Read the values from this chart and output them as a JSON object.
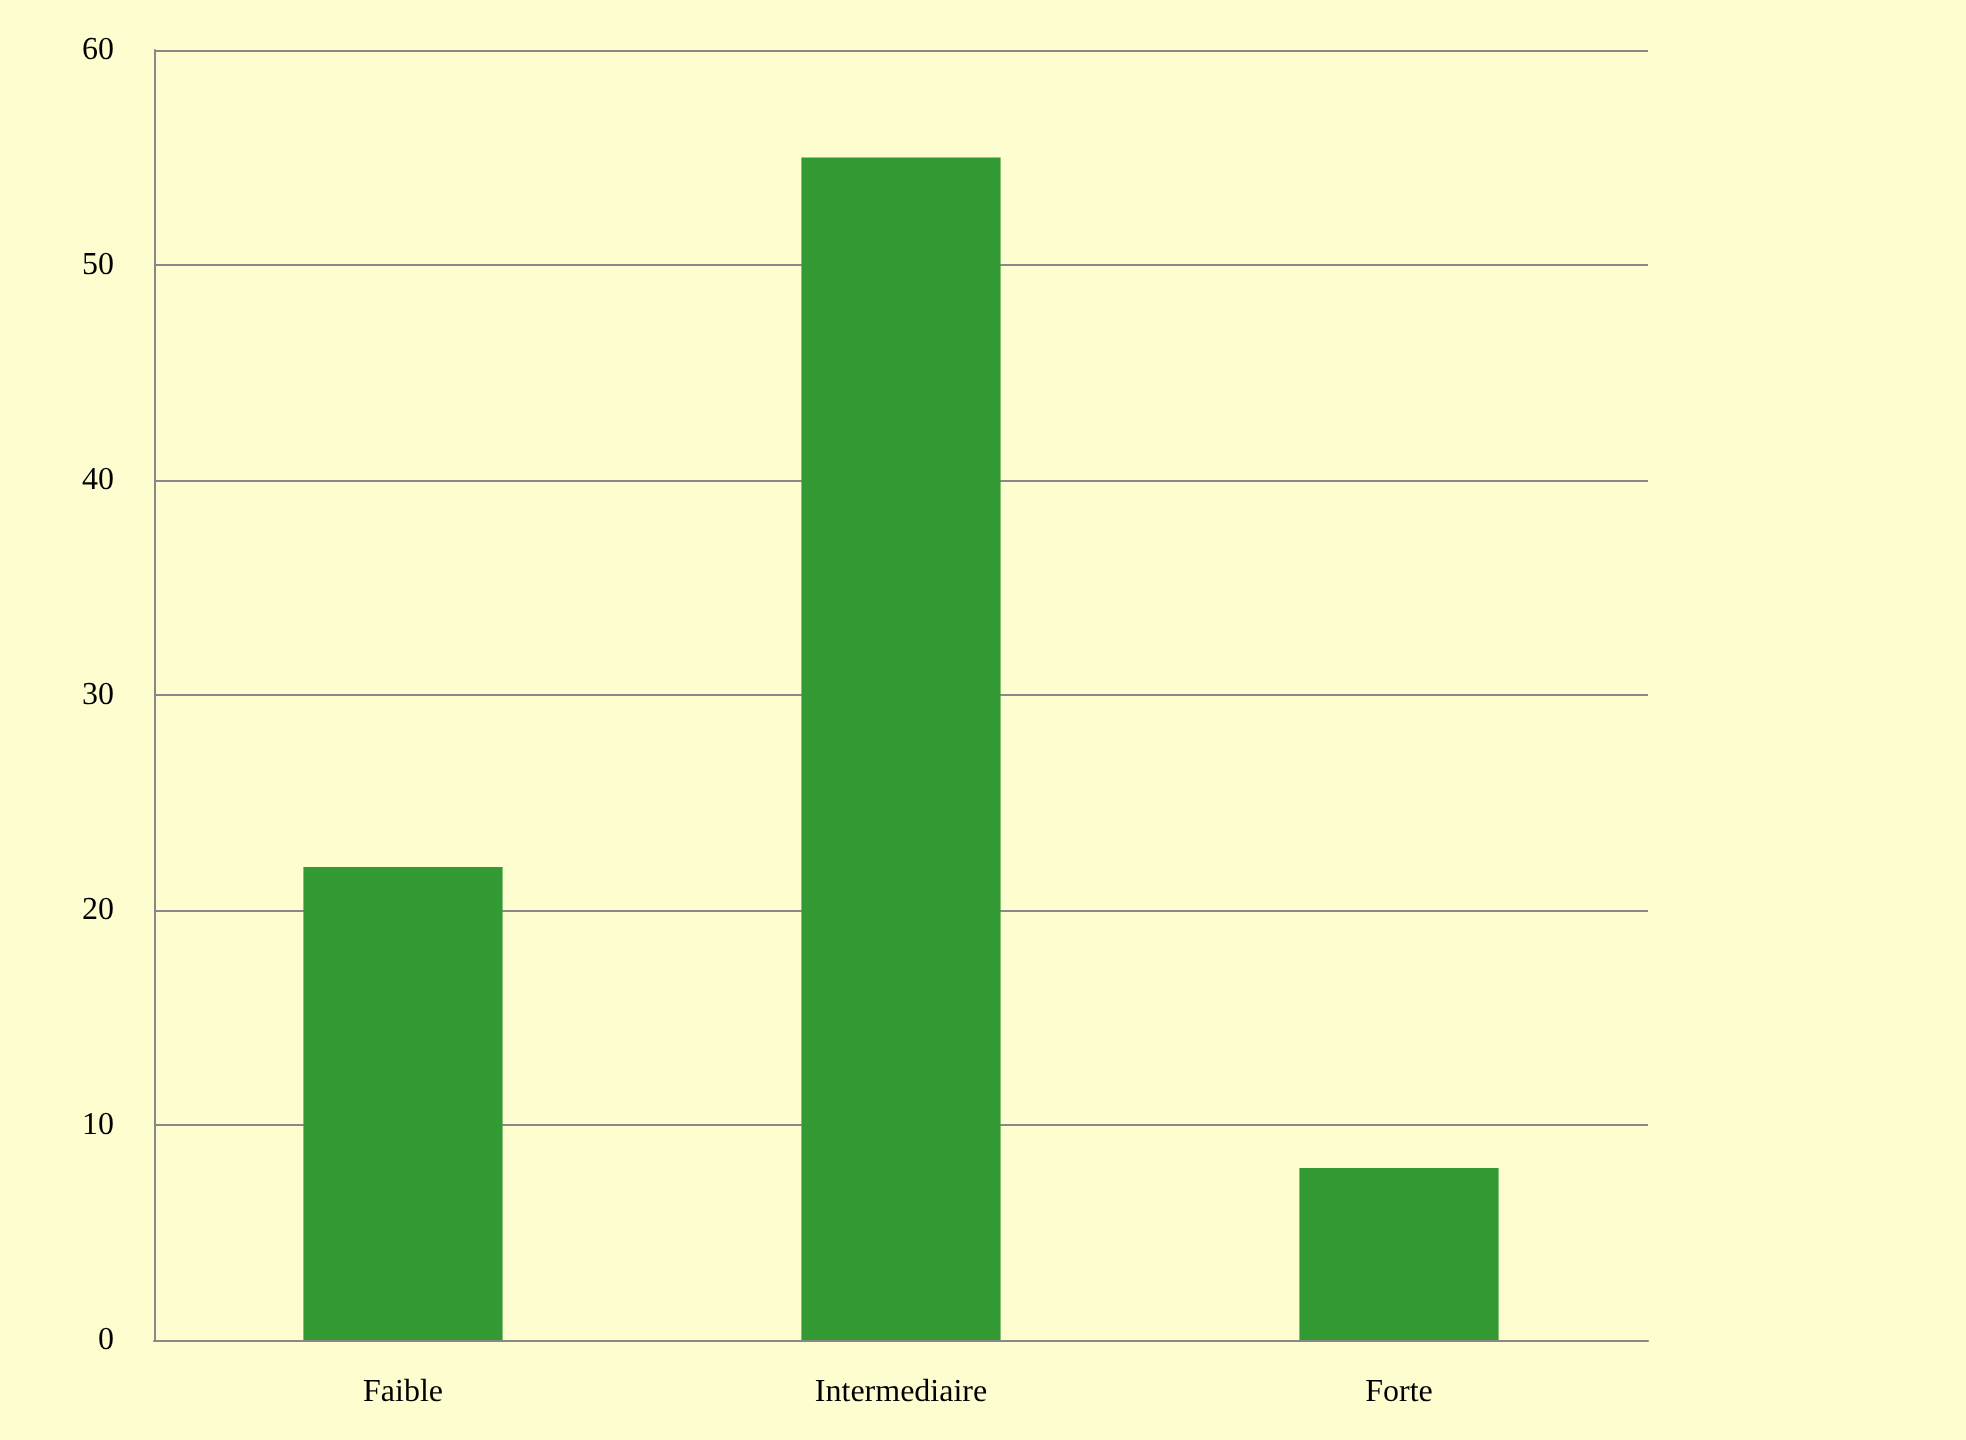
{
  "chart_data": {
    "type": "bar",
    "categories": [
      "Faible",
      "Intermediaire",
      "Forte"
    ],
    "values": [
      22,
      55,
      8
    ],
    "color": "#339933",
    "ylim": [
      0,
      60
    ],
    "yticks": [
      0,
      10,
      20,
      30,
      40,
      50,
      60
    ],
    "grid": "y"
  }
}
